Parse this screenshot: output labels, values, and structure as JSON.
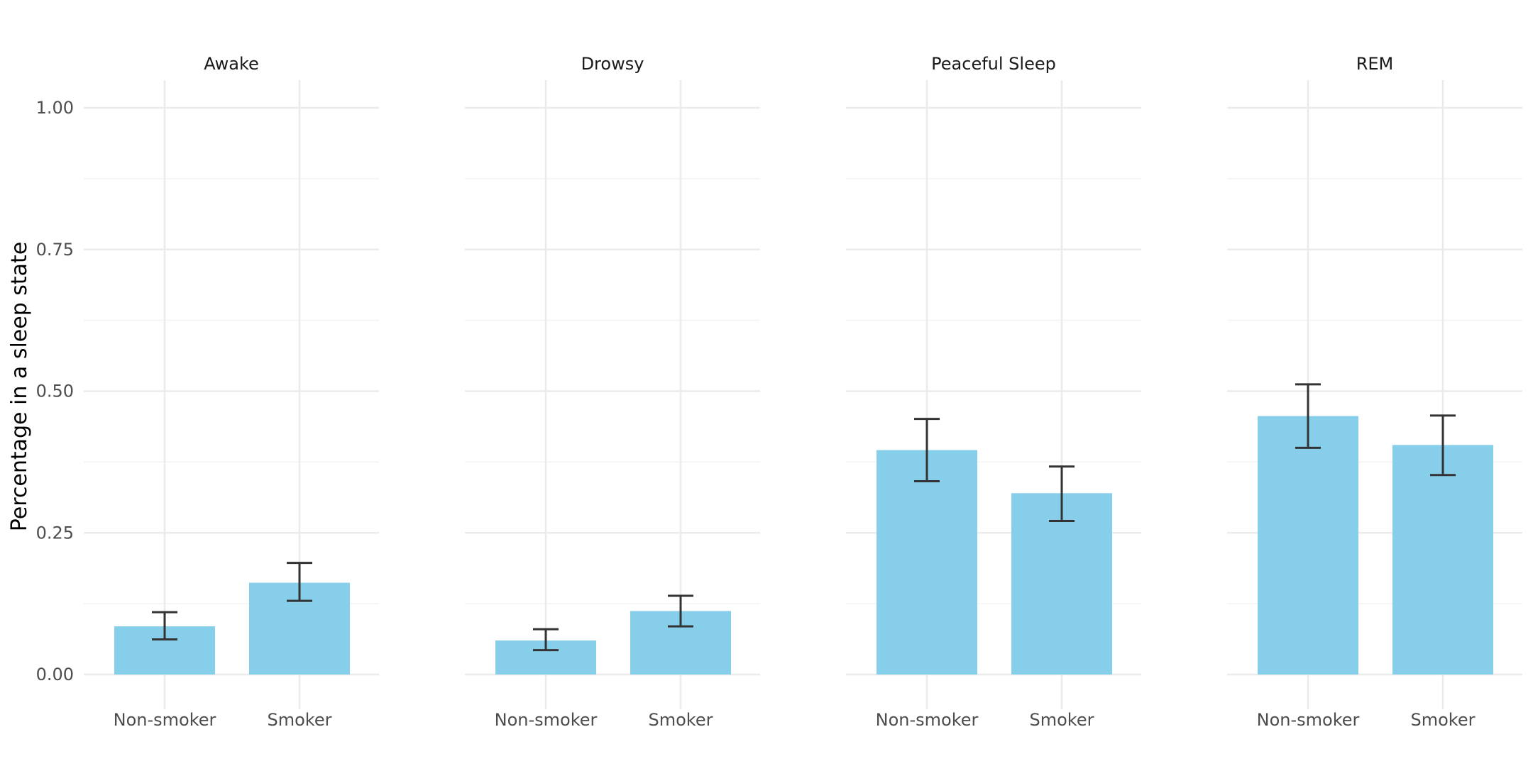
{
  "chart_data": {
    "type": "bar",
    "ylabel": "Percentage in a sleep state",
    "xlabel": "",
    "ylim": [
      0,
      1
    ],
    "yticks": [
      "0.00",
      "0.25",
      "0.50",
      "0.75",
      "1.00"
    ],
    "ytick_values": [
      0,
      0.25,
      0.5,
      0.75,
      1.0
    ],
    "categories": [
      "Non-smoker",
      "Smoker"
    ],
    "bar_color": "#87CEEB",
    "errorbar_color": "#333333",
    "grid": true,
    "legend": "none",
    "panels": [
      {
        "title": "Awake",
        "values": [
          0.085,
          0.162
        ],
        "err_low": [
          0.062,
          0.13
        ],
        "err_high": [
          0.11,
          0.197
        ]
      },
      {
        "title": "Drowsy",
        "values": [
          0.06,
          0.112
        ],
        "err_low": [
          0.043,
          0.085
        ],
        "err_high": [
          0.08,
          0.139
        ]
      },
      {
        "title": "Peaceful Sleep",
        "values": [
          0.396,
          0.32
        ],
        "err_low": [
          0.341,
          0.271
        ],
        "err_high": [
          0.451,
          0.367
        ]
      },
      {
        "title": "REM",
        "values": [
          0.456,
          0.405
        ],
        "err_low": [
          0.4,
          0.352
        ],
        "err_high": [
          0.512,
          0.457
        ]
      }
    ]
  }
}
